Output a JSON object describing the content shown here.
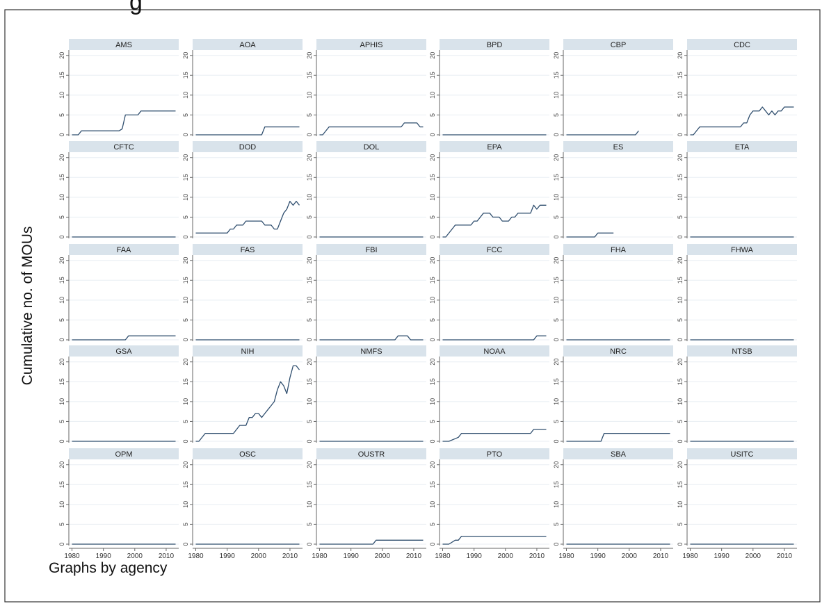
{
  "figure": {
    "ylabel": "Cumulative no. of MOUs",
    "note": "Graphs by agency",
    "header_fragment": "g",
    "line_color": "#2f4e6e",
    "strip_color": "#d9e3eb",
    "grid_color": "#e8eef3"
  },
  "chart_data": {
    "type": "line",
    "xlim": [
      1979,
      2014
    ],
    "ylim": [
      0,
      21
    ],
    "xticks": [
      "1980",
      "1990",
      "2000",
      "2010"
    ],
    "yticks": [
      "0",
      "5",
      "10",
      "15",
      "20"
    ],
    "grid": true,
    "panels": [
      {
        "name": "AMS",
        "points": [
          [
            1980,
            0
          ],
          [
            1982,
            0
          ],
          [
            1983,
            1
          ],
          [
            1995,
            1
          ],
          [
            1996,
            1.5
          ],
          [
            1997,
            5
          ],
          [
            2001,
            5
          ],
          [
            2002,
            6
          ],
          [
            2013,
            6
          ]
        ]
      },
      {
        "name": "AOA",
        "points": [
          [
            1980,
            0
          ],
          [
            2001,
            0
          ],
          [
            2002,
            2
          ],
          [
            2013,
            2
          ]
        ]
      },
      {
        "name": "APHIS",
        "points": [
          [
            1980,
            0
          ],
          [
            1981,
            0
          ],
          [
            1983,
            2
          ],
          [
            2006,
            2
          ],
          [
            2007,
            3
          ],
          [
            2011,
            3
          ],
          [
            2012,
            2
          ],
          [
            2013,
            2
          ]
        ]
      },
      {
        "name": "BPD",
        "points": [
          [
            1980,
            0
          ],
          [
            2013,
            0
          ]
        ]
      },
      {
        "name": "CBP",
        "points": [
          [
            1980,
            0
          ],
          [
            2002,
            0
          ],
          [
            2003,
            1
          ]
        ]
      },
      {
        "name": "CDC",
        "points": [
          [
            1980,
            0
          ],
          [
            1981,
            0
          ],
          [
            1983,
            2
          ],
          [
            1996,
            2
          ],
          [
            1997,
            3
          ],
          [
            1998,
            3
          ],
          [
            1999,
            5
          ],
          [
            2000,
            6
          ],
          [
            2002,
            6
          ],
          [
            2003,
            7
          ],
          [
            2004,
            6
          ],
          [
            2005,
            5
          ],
          [
            2006,
            6
          ],
          [
            2007,
            5
          ],
          [
            2008,
            6
          ],
          [
            2009,
            6
          ],
          [
            2010,
            7
          ],
          [
            2013,
            7
          ]
        ]
      },
      {
        "name": "CFTC",
        "points": [
          [
            1980,
            0
          ],
          [
            2013,
            0
          ]
        ]
      },
      {
        "name": "DOD",
        "points": [
          [
            1980,
            1
          ],
          [
            1990,
            1
          ],
          [
            1991,
            2
          ],
          [
            1992,
            2
          ],
          [
            1993,
            3
          ],
          [
            1995,
            3
          ],
          [
            1996,
            4
          ],
          [
            2001,
            4
          ],
          [
            2002,
            3
          ],
          [
            2004,
            3
          ],
          [
            2005,
            2
          ],
          [
            2006,
            2
          ],
          [
            2007,
            4
          ],
          [
            2008,
            6
          ],
          [
            2009,
            7
          ],
          [
            2010,
            9
          ],
          [
            2011,
            8
          ],
          [
            2012,
            9
          ],
          [
            2013,
            8
          ]
        ]
      },
      {
        "name": "DOL",
        "points": [
          [
            1980,
            0
          ],
          [
            2013,
            0
          ]
        ]
      },
      {
        "name": "EPA",
        "points": [
          [
            1980,
            0
          ],
          [
            1981,
            0
          ],
          [
            1983,
            2
          ],
          [
            1984,
            3
          ],
          [
            1989,
            3
          ],
          [
            1990,
            4
          ],
          [
            1991,
            4
          ],
          [
            1993,
            6
          ],
          [
            1995,
            6
          ],
          [
            1996,
            5
          ],
          [
            1998,
            5
          ],
          [
            1999,
            4
          ],
          [
            2001,
            4
          ],
          [
            2002,
            5
          ],
          [
            2003,
            5
          ],
          [
            2004,
            6
          ],
          [
            2008,
            6
          ],
          [
            2009,
            8
          ],
          [
            2010,
            7
          ],
          [
            2011,
            8
          ],
          [
            2013,
            8
          ]
        ]
      },
      {
        "name": "ES",
        "points": [
          [
            1980,
            0
          ],
          [
            1989,
            0
          ],
          [
            1990,
            1
          ],
          [
            1995,
            1
          ]
        ]
      },
      {
        "name": "ETA",
        "points": [
          [
            1980,
            0
          ],
          [
            2013,
            0
          ]
        ]
      },
      {
        "name": "FAA",
        "points": [
          [
            1980,
            0
          ],
          [
            1997,
            0
          ],
          [
            1998,
            1
          ],
          [
            2013,
            1
          ]
        ]
      },
      {
        "name": "FAS",
        "points": [
          [
            1980,
            0
          ],
          [
            2013,
            0
          ]
        ]
      },
      {
        "name": "FBI",
        "points": [
          [
            1980,
            0
          ],
          [
            2004,
            0
          ],
          [
            2005,
            1
          ],
          [
            2008,
            1
          ],
          [
            2009,
            0
          ],
          [
            2013,
            0
          ]
        ]
      },
      {
        "name": "FCC",
        "points": [
          [
            1980,
            0
          ],
          [
            2009,
            0
          ],
          [
            2010,
            1
          ],
          [
            2013,
            1
          ]
        ]
      },
      {
        "name": "FHA",
        "points": [
          [
            1980,
            0
          ],
          [
            2013,
            0
          ]
        ]
      },
      {
        "name": "FHWA",
        "points": [
          [
            1980,
            0
          ],
          [
            2013,
            0
          ]
        ]
      },
      {
        "name": "GSA",
        "points": [
          [
            1980,
            0
          ],
          [
            2013,
            0
          ]
        ]
      },
      {
        "name": "NIH",
        "points": [
          [
            1980,
            0
          ],
          [
            1981,
            0
          ],
          [
            1983,
            2
          ],
          [
            1992,
            2
          ],
          [
            1994,
            4
          ],
          [
            1996,
            4
          ],
          [
            1997,
            6
          ],
          [
            1998,
            6
          ],
          [
            1999,
            7
          ],
          [
            2000,
            7
          ],
          [
            2001,
            6
          ],
          [
            2002,
            7
          ],
          [
            2003,
            8
          ],
          [
            2004,
            9
          ],
          [
            2005,
            10
          ],
          [
            2006,
            13
          ],
          [
            2007,
            15
          ],
          [
            2008,
            14
          ],
          [
            2009,
            12
          ],
          [
            2010,
            16
          ],
          [
            2011,
            19
          ],
          [
            2012,
            19
          ],
          [
            2013,
            18
          ]
        ]
      },
      {
        "name": "NMFS",
        "points": [
          [
            1980,
            0
          ],
          [
            2013,
            0
          ]
        ]
      },
      {
        "name": "NOAA",
        "points": [
          [
            1980,
            0
          ],
          [
            1982,
            0
          ],
          [
            1985,
            1
          ],
          [
            1986,
            2
          ],
          [
            2008,
            2
          ],
          [
            2009,
            3
          ],
          [
            2013,
            3
          ]
        ]
      },
      {
        "name": "NRC",
        "points": [
          [
            1980,
            0
          ],
          [
            1991,
            0
          ],
          [
            1992,
            2
          ],
          [
            2013,
            2
          ]
        ]
      },
      {
        "name": "NTSB",
        "points": [
          [
            1980,
            0
          ],
          [
            2013,
            0
          ]
        ]
      },
      {
        "name": "OPM",
        "points": [
          [
            1980,
            0
          ],
          [
            2013,
            0
          ]
        ]
      },
      {
        "name": "OSC",
        "points": [
          [
            1980,
            0
          ],
          [
            2013,
            0
          ]
        ]
      },
      {
        "name": "OUSTR",
        "points": [
          [
            1980,
            0
          ],
          [
            1997,
            0
          ],
          [
            1998,
            1
          ],
          [
            2013,
            1
          ]
        ]
      },
      {
        "name": "PTO",
        "points": [
          [
            1980,
            0
          ],
          [
            1982,
            0
          ],
          [
            1984,
            1
          ],
          [
            1985,
            1
          ],
          [
            1986,
            2
          ],
          [
            2013,
            2
          ]
        ]
      },
      {
        "name": "SBA",
        "points": [
          [
            1980,
            0
          ],
          [
            2013,
            0
          ]
        ]
      },
      {
        "name": "USITC",
        "points": [
          [
            1980,
            0
          ],
          [
            2013,
            0
          ]
        ]
      }
    ]
  }
}
